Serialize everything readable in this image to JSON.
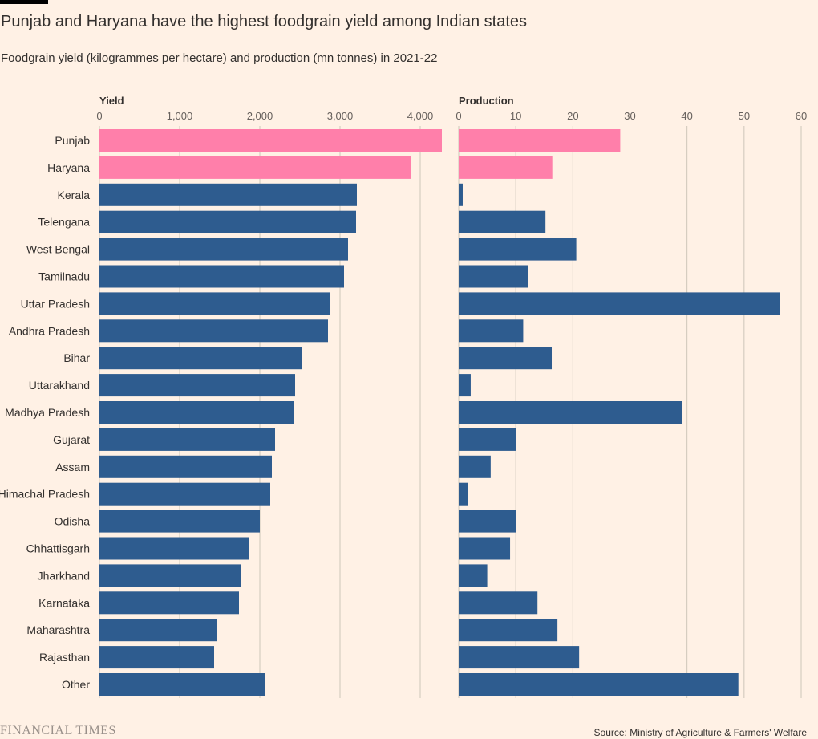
{
  "title": "Punjab and Haryana have the highest foodgrain yield among Indian states",
  "subtitle": "Foodgrain yield (kilogrammes per hectare) and production (mn tonnes) in 2021-22",
  "source": "Source: Ministry of Agriculture & Farmers' Welfare",
  "logo": "FINANCIAL TIMES",
  "colors": {
    "highlight": "#ff7faa",
    "default": "#2e5c8f",
    "background": "#fff1e5",
    "grid": "#cec6b9"
  },
  "chart_data": [
    {
      "type": "bar",
      "orientation": "horizontal",
      "axis_title": "Yield",
      "xlim": [
        0,
        4250
      ],
      "ticks": [
        0,
        1000,
        2000,
        3000,
        4000
      ],
      "tick_labels": [
        "0",
        "1,000",
        "2,000",
        "3,000",
        "4,000"
      ],
      "grid": true,
      "categories": [
        "Punjab",
        "Haryana",
        "Kerala",
        "Telengana",
        "West Bengal",
        "Tamilnadu",
        "Uttar Pradesh",
        "Andhra Pradesh",
        "Bihar",
        "Uttarakhand",
        "Madhya Pradesh",
        "Gujarat",
        "Assam",
        "Himachal Pradesh",
        "Odisha",
        "Chhattisgarh",
        "Jharkhand",
        "Karnataka",
        "Maharashtra",
        "Rajasthan",
        "Other"
      ],
      "values": [
        4270,
        3890,
        3210,
        3200,
        3100,
        3050,
        2880,
        2850,
        2520,
        2440,
        2420,
        2190,
        2150,
        2130,
        2000,
        1870,
        1760,
        1740,
        1470,
        1430,
        2060
      ],
      "highlight": [
        "Punjab",
        "Haryana"
      ]
    },
    {
      "type": "bar",
      "orientation": "horizontal",
      "axis_title": "Production",
      "xlim": [
        0,
        60
      ],
      "ticks": [
        0,
        10,
        20,
        30,
        40,
        50,
        60
      ],
      "tick_labels": [
        "0",
        "10",
        "20",
        "30",
        "40",
        "50",
        "60"
      ],
      "grid": true,
      "categories": [
        "Punjab",
        "Haryana",
        "Kerala",
        "Telengana",
        "West Bengal",
        "Tamilnadu",
        "Uttar Pradesh",
        "Andhra Pradesh",
        "Bihar",
        "Uttarakhand",
        "Madhya Pradesh",
        "Gujarat",
        "Assam",
        "Himachal Pradesh",
        "Odisha",
        "Chhattisgarh",
        "Jharkhand",
        "Karnataka",
        "Maharashtra",
        "Rajasthan",
        "Other"
      ],
      "values": [
        28.3,
        16.4,
        0.7,
        15.2,
        20.6,
        12.2,
        56.3,
        11.3,
        16.3,
        2.1,
        39.2,
        10.1,
        5.6,
        1.6,
        10.0,
        9.0,
        5.0,
        13.8,
        17.3,
        21.1,
        49.0
      ],
      "highlight": [
        "Punjab",
        "Haryana"
      ]
    }
  ]
}
